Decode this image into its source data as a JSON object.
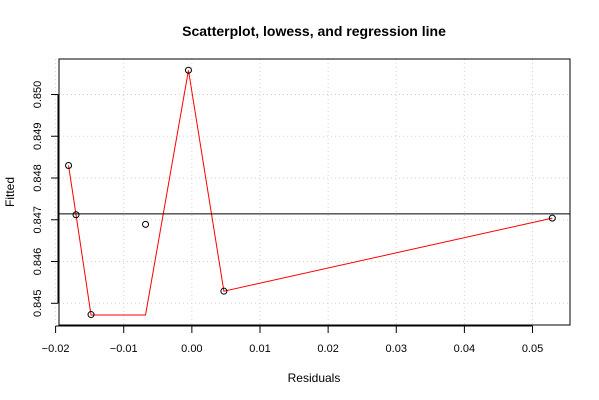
{
  "chart_data": {
    "type": "scatter",
    "title": "Scatterplot, lowess, and regression line",
    "xlabel": "Residuals",
    "ylabel": "Fitted",
    "xlim": [
      -0.0195,
      0.0555
    ],
    "ylim": [
      0.84448,
      0.85085
    ],
    "x_ticks": [
      -0.02,
      -0.01,
      0.0,
      0.01,
      0.02,
      0.03,
      0.04,
      0.05
    ],
    "x_tick_labels": [
      "−0.02",
      "−0.01",
      "0.00",
      "0.01",
      "0.02",
      "0.03",
      "0.04",
      "0.05"
    ],
    "y_ticks": [
      0.845,
      0.846,
      0.847,
      0.848,
      0.849,
      0.85
    ],
    "y_tick_labels": [
      "0.845",
      "0.846",
      "0.847",
      "0.848",
      "0.849",
      "0.850"
    ],
    "grid": true,
    "points": [
      {
        "x": -0.0181,
        "y": 0.8483
      },
      {
        "x": -0.017,
        "y": 0.84712
      },
      {
        "x": -0.0148,
        "y": 0.84473
      },
      {
        "x": -0.0068,
        "y": 0.84689
      },
      {
        "x": -0.0005,
        "y": 0.85058
      },
      {
        "x": 0.0047,
        "y": 0.84529
      },
      {
        "x": 0.0529,
        "y": 0.84704
      }
    ],
    "lowess": {
      "color": "#ff0000",
      "x": [
        -0.0181,
        -0.017,
        -0.0148,
        -0.0068,
        -0.0005,
        0.0047,
        0.0529
      ],
      "y": [
        0.8483,
        0.84712,
        0.84472,
        0.84472,
        0.85058,
        0.84529,
        0.84704
      ]
    },
    "regression_line": {
      "color": "#000000",
      "y": 0.84714
    },
    "colors": {
      "points": "#000000",
      "grid": "#d3d3d3",
      "axes": "#000000"
    }
  }
}
